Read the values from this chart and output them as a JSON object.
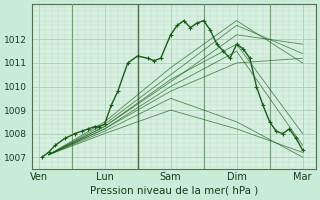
{
  "title": "",
  "xlabel": "Pression niveau de la mer( hPa )",
  "ylabel": "",
  "bg_color": "#c8ecd8",
  "plot_bg_color": "#d8f0e0",
  "line_color": "#1a5c1a",
  "grid_color": "#a0c8b0",
  "minor_grid_color": "#b8dcc8",
  "ylim": [
    1006.5,
    1013.5
  ],
  "yticks": [
    1007,
    1008,
    1009,
    1010,
    1011,
    1012
  ],
  "xtick_labels": [
    "Ven",
    "Lun",
    "Sam",
    "Dim",
    "Mar"
  ],
  "xtick_positions": [
    0,
    1,
    2,
    3,
    4
  ],
  "day_dividers": [
    0.5,
    1.5,
    2.5,
    3.5
  ],
  "num_days": 5,
  "ensemble_lines": [
    {
      "x": [
        0.15,
        1.0,
        2.0,
        3.0,
        4.0
      ],
      "y": [
        1007.1,
        1008.2,
        1009.8,
        1011.0,
        1011.2
      ]
    },
    {
      "x": [
        0.15,
        1.0,
        2.0,
        3.0,
        4.0
      ],
      "y": [
        1007.1,
        1008.3,
        1010.2,
        1012.2,
        1011.8
      ]
    },
    {
      "x": [
        0.15,
        1.0,
        2.0,
        3.0,
        4.0
      ],
      "y": [
        1007.1,
        1008.4,
        1010.5,
        1012.6,
        1011.4
      ]
    },
    {
      "x": [
        0.15,
        1.0,
        2.0,
        3.0,
        4.0
      ],
      "y": [
        1007.1,
        1008.5,
        1010.8,
        1012.8,
        1011.0
      ]
    },
    {
      "x": [
        0.15,
        1.0,
        2.0,
        3.0,
        4.0
      ],
      "y": [
        1007.1,
        1008.2,
        1010.0,
        1011.5,
        1007.5
      ]
    },
    {
      "x": [
        0.15,
        1.0,
        2.0,
        3.0,
        4.0
      ],
      "y": [
        1007.1,
        1008.3,
        1010.3,
        1011.8,
        1008.0
      ]
    },
    {
      "x": [
        0.15,
        1.0,
        2.0,
        3.0,
        4.0
      ],
      "y": [
        1007.1,
        1008.0,
        1009.0,
        1008.2,
        1007.2
      ]
    },
    {
      "x": [
        0.15,
        1.0,
        2.0,
        3.0,
        4.0
      ],
      "y": [
        1007.1,
        1008.1,
        1009.5,
        1008.5,
        1007.0
      ]
    }
  ],
  "main_line": {
    "x": [
      0.05,
      0.15,
      0.25,
      0.4,
      0.55,
      0.65,
      0.75,
      0.85,
      0.92,
      1.0,
      1.1,
      1.2,
      1.35,
      1.5,
      1.65,
      1.75,
      1.85,
      2.0,
      2.1,
      2.2,
      2.3,
      2.4,
      2.5,
      2.6,
      2.7,
      2.8,
      2.9,
      3.0,
      3.1,
      3.2,
      3.3,
      3.4,
      3.5,
      3.6,
      3.7,
      3.8,
      3.9,
      4.0
    ],
    "y": [
      1007.0,
      1007.2,
      1007.5,
      1007.8,
      1008.0,
      1008.1,
      1008.2,
      1008.3,
      1008.3,
      1008.4,
      1009.2,
      1009.8,
      1011.0,
      1011.3,
      1011.2,
      1011.1,
      1011.2,
      1012.2,
      1012.6,
      1012.8,
      1012.5,
      1012.7,
      1012.8,
      1012.4,
      1011.8,
      1011.5,
      1011.2,
      1011.8,
      1011.6,
      1011.2,
      1010.0,
      1009.2,
      1008.5,
      1008.1,
      1008.0,
      1008.2,
      1007.8,
      1007.3
    ]
  }
}
